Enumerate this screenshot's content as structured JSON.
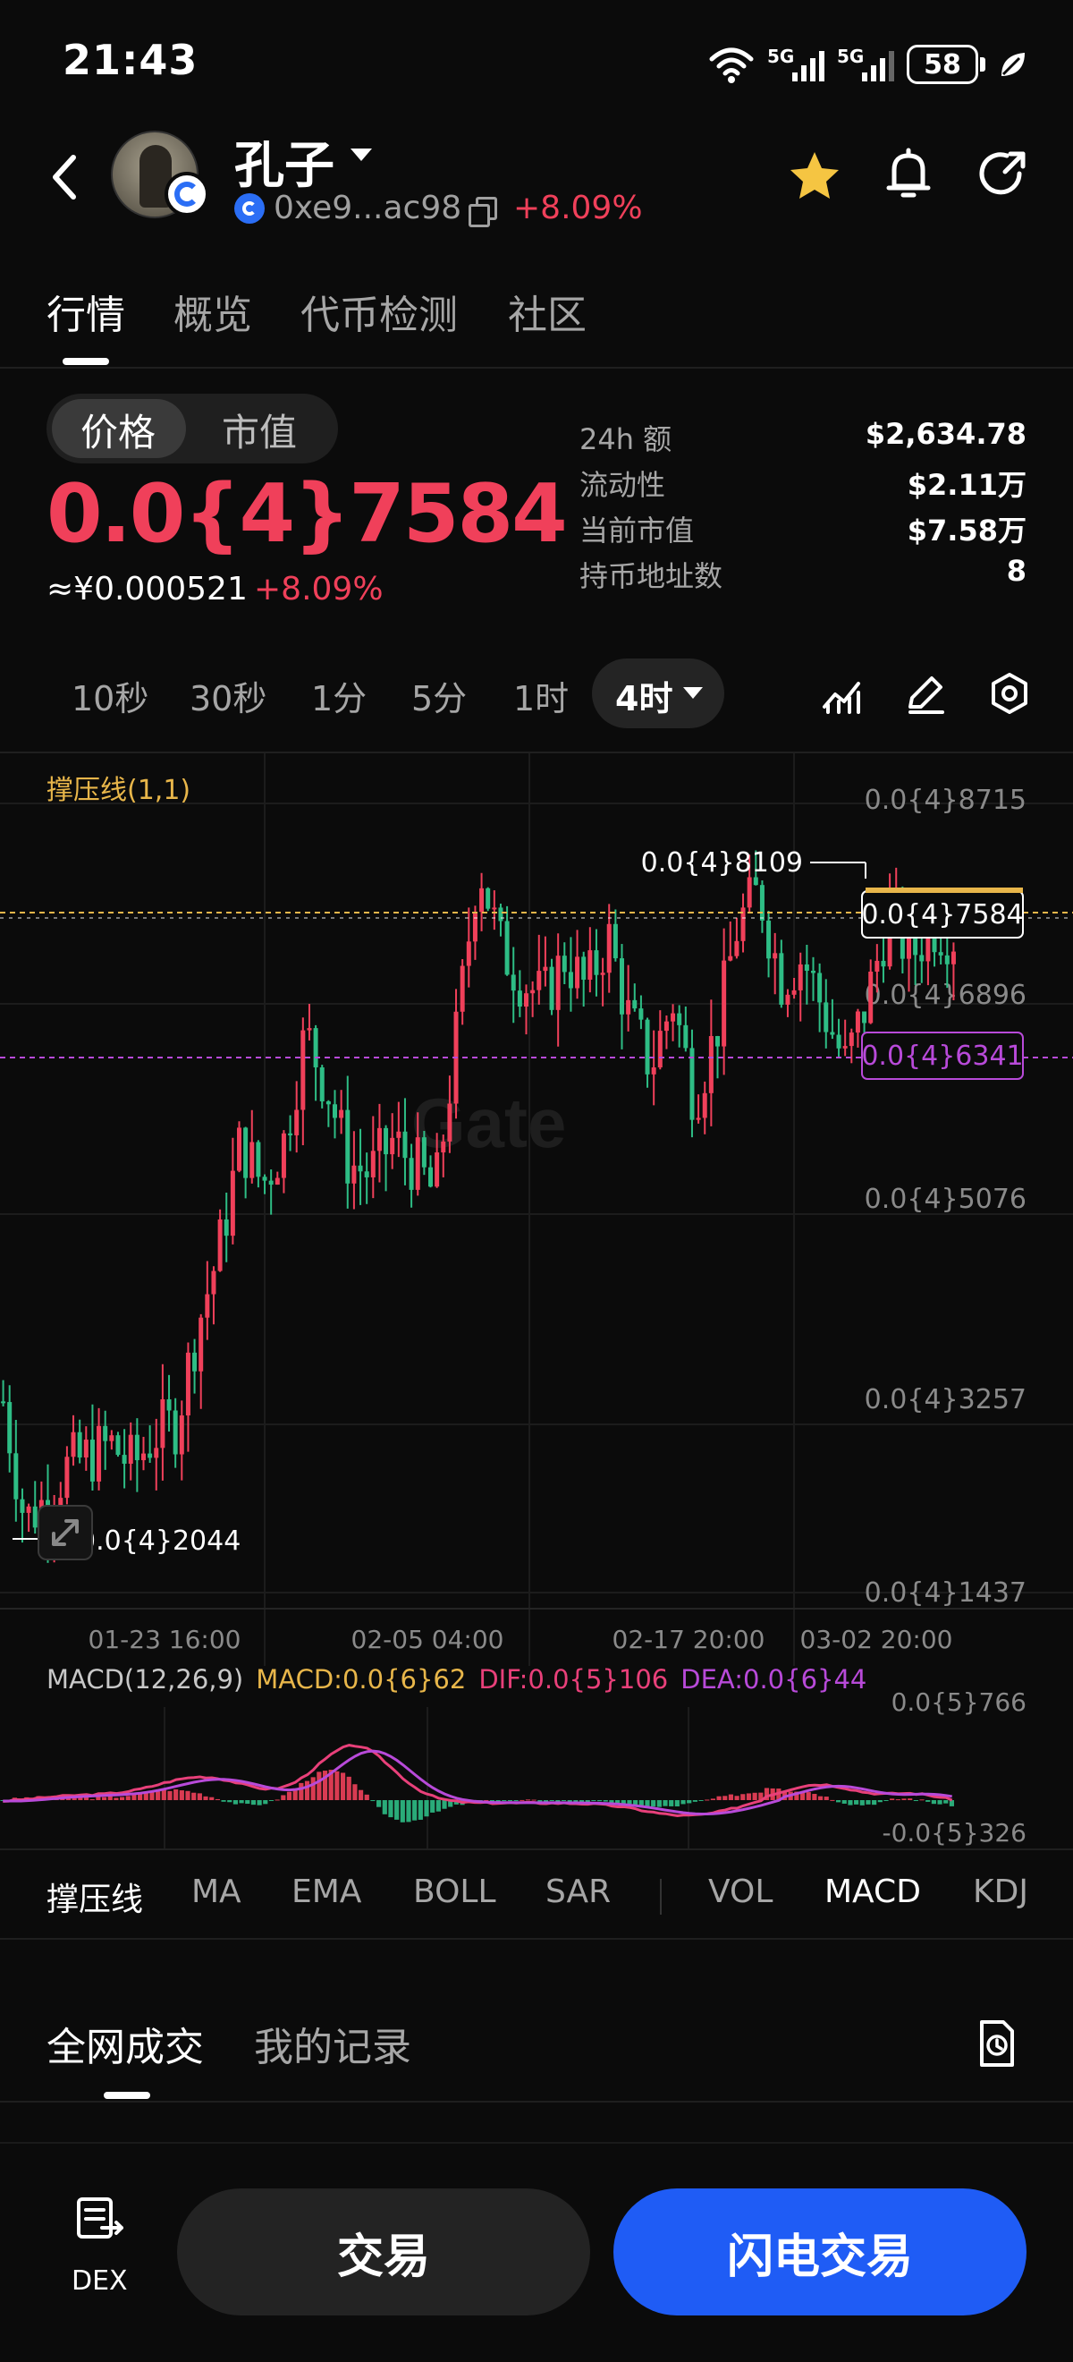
{
  "status_bar": {
    "time": "21:43",
    "network_1": "5G",
    "network_2": "5G",
    "battery": "58"
  },
  "header": {
    "token_name": "孔子",
    "address": "0xe9...ac98",
    "change": "+8.09%",
    "favorite_color": "#f5c542"
  },
  "tabs": [
    "行情",
    "概览",
    "代币检测",
    "社区"
  ],
  "price_toggle": {
    "price": "价格",
    "market_cap": "市值"
  },
  "price": {
    "value": "0.0{4}7584",
    "fiat": "≈¥0.000521",
    "change": "+8.09%",
    "color": "#f0405a"
  },
  "stats": [
    {
      "label": "24h  额",
      "value": "$2,634.78"
    },
    {
      "label": "流动性",
      "value": "$2.11万"
    },
    {
      "label": "当前市值",
      "value": "$7.58万"
    },
    {
      "label": "持币地址数",
      "value": "8"
    }
  ],
  "intervals": [
    "10秒",
    "30秒",
    "1分",
    "5分",
    "1时"
  ],
  "interval_active": "4时",
  "chart": {
    "indicator_label": "撑压线(1,1)",
    "watermark": "Gate",
    "y_labels": [
      "0.0{4}8715",
      "0.0{4}6896",
      "0.0{4}5076",
      "0.0{4}3257",
      "0.0{4}1437"
    ],
    "x_labels": [
      "01-23 16:00",
      "02-05 04:00",
      "02-17 20:00",
      "03-02 20:00"
    ],
    "high_label": "0.0{4}8109",
    "low_label": "0.0{4}2044",
    "current_label": "0.0{4}7584",
    "support_label": "0.0{4}6341"
  },
  "chart_data": {
    "type": "candlestick",
    "y_axis": {
      "min": "0.0{4}1437",
      "max": "0.0{4}8715"
    },
    "x_ticks": [
      "01-23 16:00",
      "02-05 04:00",
      "02-17 20:00",
      "03-02 20:00"
    ],
    "highest": "0.0{4}8109",
    "lowest": "0.0{4}2044",
    "last_price": "0.0{4}7584",
    "support_line": "0.0{4}6341",
    "close_approx_e5": [
      3.2,
      2.1,
      2.3,
      2.6,
      2.7,
      2.8,
      2.6,
      2.9,
      3.0,
      3.9,
      4.6,
      5.6,
      5.2,
      5.6,
      6.6,
      6.1,
      5.4,
      5.3,
      5.6,
      5.4,
      5.1,
      6.6,
      8.2,
      7.4,
      7.1,
      6.9,
      7.3,
      7.0,
      7.5,
      6.7,
      6.3,
      6.9,
      6.0,
      6.6,
      7.6,
      7.9,
      7.1,
      7.3,
      6.8,
      6.3,
      6.9,
      7.7,
      7.3,
      7.6,
      7.5
    ],
    "up_color": "#f0405a",
    "down_color": "#2ebd85"
  },
  "macd": {
    "label": "MACD(12,26,9)",
    "macd": "MACD:0.0{6}62",
    "dif": "DIF:0.0{5}106",
    "dea": "DEA:0.0{6}44",
    "y_top": "0.0{5}766",
    "y_bottom": "-0.0{5}326",
    "macd_color": "#e8b64a",
    "dif_color": "#e8407a",
    "dea_color": "#b84ad9"
  },
  "indicator_tabs": [
    "撑压线",
    "MA",
    "EMA",
    "BOLL",
    "SAR",
    "VOL",
    "MACD",
    "KDJ"
  ],
  "trade_tabs": [
    "全网成交",
    "我的记录"
  ],
  "bottom": {
    "dex": "DEX",
    "trade": "交易",
    "flash_trade": "闪电交易",
    "flash_color": "#1f5cf5"
  }
}
